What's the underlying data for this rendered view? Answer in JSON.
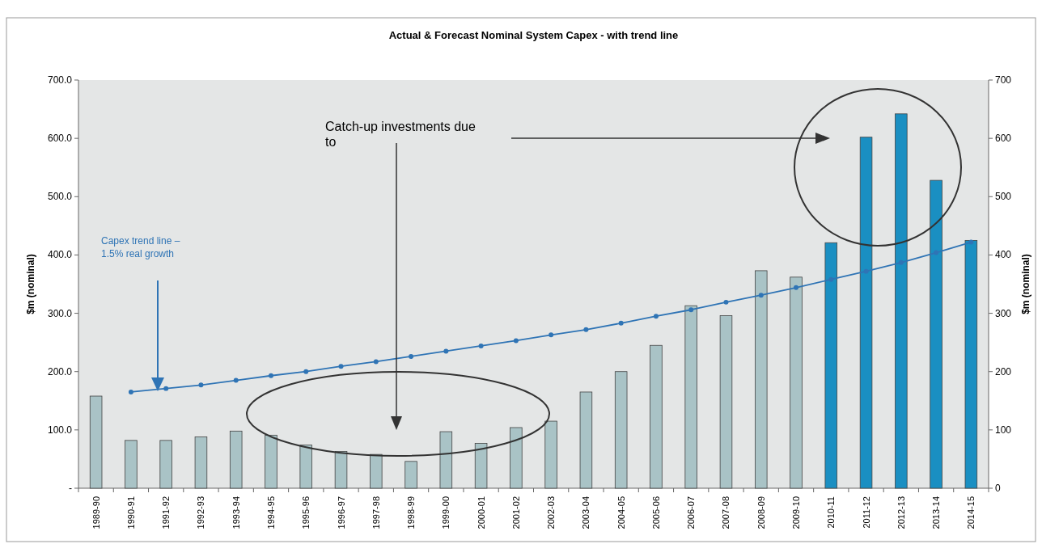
{
  "chart_data": {
    "type": "bar",
    "title": "Actual & Forecast Nominal System Capex - with trend line",
    "ylabel": "$m (nominal)",
    "y2label": "$m (nominal)",
    "categories": [
      "1989-90",
      "1990-91",
      "1991-92",
      "1992-93",
      "1993-94",
      "1994-95",
      "1995-96",
      "1996-97",
      "1997-98",
      "1998-99",
      "1999-00",
      "2000-01",
      "2001-02",
      "2002-03",
      "2003-04",
      "2004-05",
      "2005-06",
      "2006-07",
      "2007-08",
      "2008-09",
      "2009-10",
      "2010-11",
      "2011-12",
      "2012-13",
      "2013-14",
      "2014-15"
    ],
    "series": [
      {
        "values": [
          158,
          82,
          82,
          88,
          98,
          91,
          74,
          63,
          58,
          46,
          97,
          77,
          104,
          115,
          165,
          200,
          245,
          313,
          296,
          373,
          362,
          421,
          602,
          642,
          528,
          425
        ],
        "colors": [
          "#a9c3c6",
          "#a9c3c6",
          "#a9c3c6",
          "#a9c3c6",
          "#a9c3c6",
          "#a9c3c6",
          "#a9c3c6",
          "#a9c3c6",
          "#a9c3c6",
          "#a9c3c6",
          "#a9c3c6",
          "#a9c3c6",
          "#a9c3c6",
          "#a9c3c6",
          "#a9c3c6",
          "#a9c3c6",
          "#a9c3c6",
          "#a9c3c6",
          "#a9c3c6",
          "#a9c3c6",
          "#a9c3c6",
          "#1a8fc2",
          "#1a8fc2",
          "#1a8fc2",
          "#1a8fc2",
          "#1a8fc2"
        ]
      },
      {
        "type": "line",
        "color": "#2f74b5",
        "marker": "circle",
        "values": [
          null,
          165,
          171,
          177,
          185,
          193,
          200,
          209,
          217,
          226,
          235,
          244,
          253,
          263,
          272,
          283,
          295,
          306,
          319,
          331,
          344,
          358,
          372,
          387,
          404,
          422
        ]
      }
    ],
    "ylim": [
      0,
      700
    ],
    "yticks": [
      {
        "value": 0,
        "label": "-"
      },
      {
        "value": 100,
        "label": "100.0"
      },
      {
        "value": 200,
        "label": "200.0"
      },
      {
        "value": 300,
        "label": "300.0"
      },
      {
        "value": 400,
        "label": "400.0"
      },
      {
        "value": 500,
        "label": "500.0"
      },
      {
        "value": 600,
        "label": "600.0"
      },
      {
        "value": 700,
        "label": "700.0"
      }
    ],
    "y2lim": [
      0,
      700
    ],
    "y2ticks": [
      0,
      100,
      200,
      300,
      400,
      500,
      600,
      700
    ],
    "annotations": [
      "Catch-up investments due to",
      "Capex trend line –\n1.5% real growth"
    ]
  }
}
